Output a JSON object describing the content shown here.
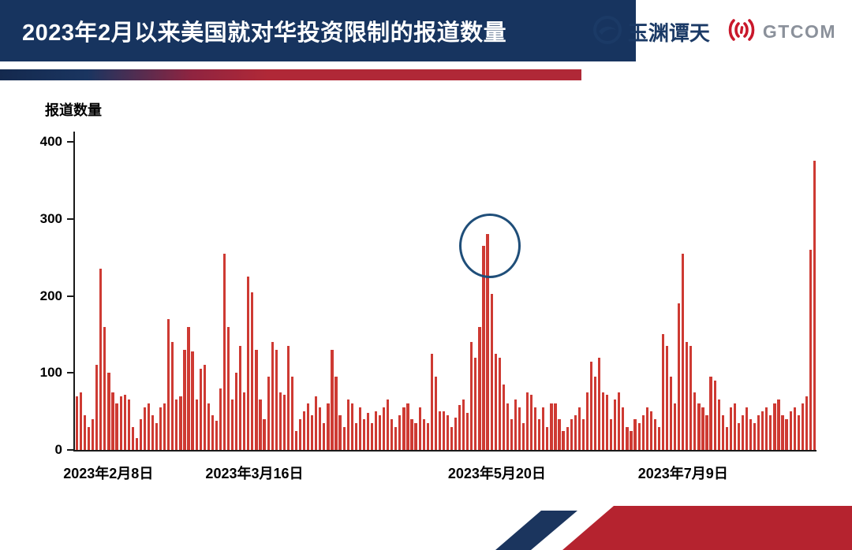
{
  "header": {
    "title": "2023年2月以来美国就对华投资限制的报道数量",
    "logo_left": "玉渊谭天",
    "logo_right": "GTCOM"
  },
  "colors": {
    "header_bg": "#17345f",
    "bar_red": "#ce3a33",
    "ribbon_red": "#b5232f",
    "ribbon_navy": "#1b355e",
    "annotation_navy": "#1f4e79",
    "gtcom_red": "#c9182b",
    "gtcom_gray": "#8b919b"
  },
  "chart_data": {
    "type": "bar",
    "title": "2023年2月以来美国就对华投资限制的报道数量",
    "xlabel": "",
    "ylabel": "报道数量",
    "ylim": [
      0,
      400
    ],
    "yticks": [
      0,
      100,
      200,
      300,
      400
    ],
    "grid": false,
    "legend": "none",
    "xticks": [
      {
        "label": "2023年2月8日",
        "pos": 0.045
      },
      {
        "label": "2023年3月16日",
        "pos": 0.242
      },
      {
        "label": "2023年5月20日",
        "pos": 0.569
      },
      {
        "label": "2023年7月9日",
        "pos": 0.82
      }
    ],
    "annotation": {
      "shape": "circle",
      "note": "circled peak near 2023-05-20",
      "index": 103,
      "value": 280
    },
    "values": [
      70,
      75,
      45,
      30,
      40,
      110,
      235,
      160,
      100,
      75,
      60,
      70,
      72,
      65,
      30,
      15,
      40,
      55,
      60,
      45,
      35,
      55,
      60,
      170,
      140,
      65,
      70,
      130,
      160,
      128,
      65,
      105,
      110,
      60,
      45,
      38,
      80,
      255,
      160,
      65,
      100,
      135,
      75,
      225,
      205,
      130,
      65,
      40,
      95,
      140,
      130,
      75,
      72,
      135,
      95,
      25,
      40,
      50,
      60,
      45,
      70,
      55,
      35,
      60,
      130,
      95,
      45,
      30,
      65,
      60,
      35,
      55,
      40,
      48,
      35,
      50,
      45,
      55,
      65,
      40,
      30,
      45,
      55,
      60,
      40,
      35,
      55,
      40,
      35,
      125,
      95,
      50,
      50,
      45,
      30,
      42,
      58,
      66,
      48,
      140,
      120,
      160,
      265,
      280,
      203,
      125,
      120,
      85,
      60,
      40,
      65,
      55,
      35,
      75,
      72,
      55,
      40,
      55,
      30,
      60,
      60,
      40,
      25,
      30,
      40,
      45,
      55,
      40,
      75,
      115,
      95,
      120,
      75,
      72,
      40,
      65,
      75,
      55,
      30,
      25,
      40,
      35,
      45,
      55,
      50,
      40,
      30,
      150,
      135,
      95,
      60,
      190,
      255,
      140,
      135,
      75,
      60,
      55,
      45,
      95,
      90,
      65,
      45,
      30,
      55,
      60,
      35,
      45,
      55,
      40,
      35,
      45,
      50,
      55,
      45,
      60,
      65,
      45,
      40,
      50,
      55,
      45,
      60,
      70,
      260,
      375
    ]
  }
}
